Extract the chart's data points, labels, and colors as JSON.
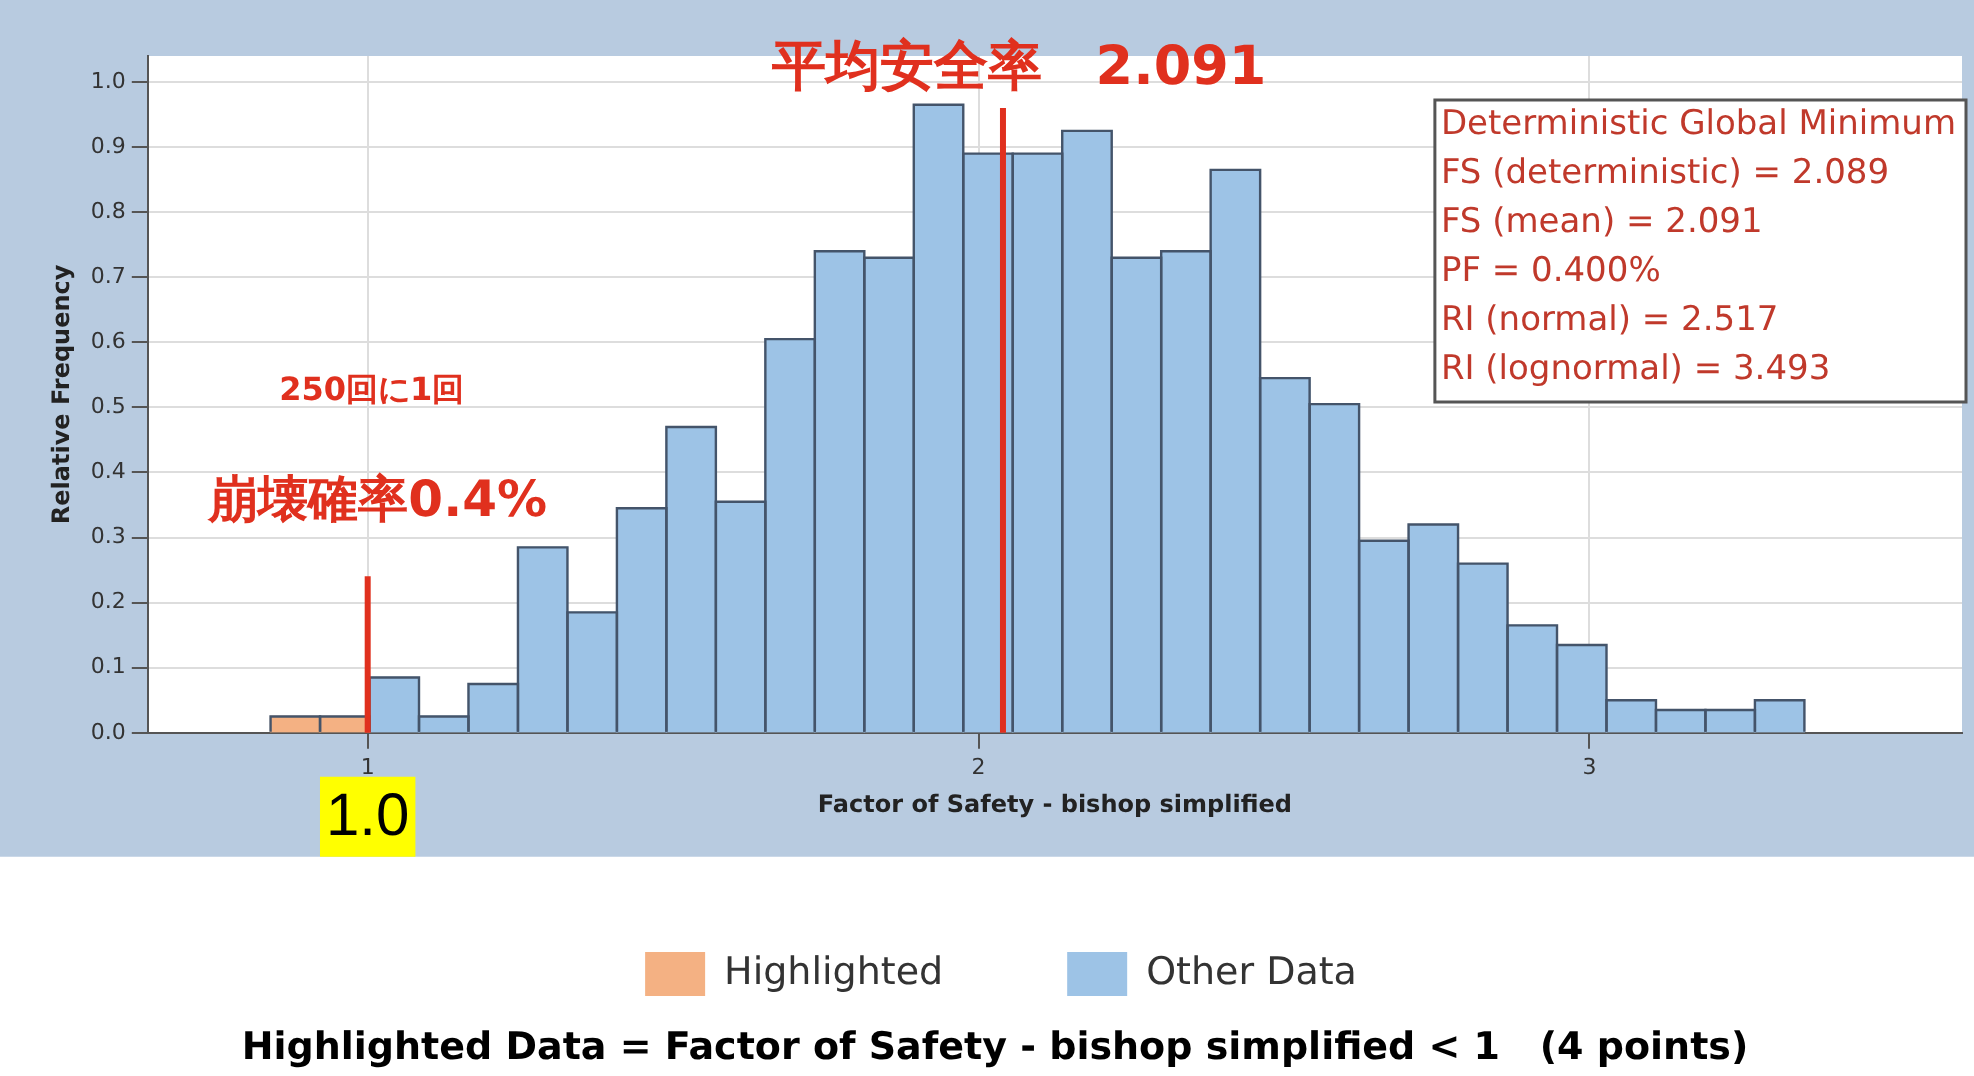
{
  "chart_data": {
    "type": "histogram",
    "xlabel": "Factor of Safety - bishop simplified",
    "ylabel": "Relative Frequency",
    "bins": [
      0.841,
      0.922,
      1.003,
      1.084,
      1.165,
      1.246,
      1.327,
      1.408,
      1.489,
      1.57,
      1.651,
      1.732,
      1.813,
      1.894,
      1.975,
      2.056,
      2.137,
      2.218,
      2.299,
      2.38,
      2.461,
      2.542,
      2.623,
      2.704,
      2.785,
      2.866,
      2.947,
      3.028,
      3.109,
      3.19,
      3.271,
      3.352
    ],
    "series": [
      {
        "name": "Highlighted",
        "color": "#f4b183",
        "values": [
          0.025,
          0.025,
          null,
          null,
          null,
          null,
          null,
          null,
          null,
          null,
          null,
          null,
          null,
          null,
          null,
          null,
          null,
          null,
          null,
          null,
          null,
          null,
          null,
          null,
          null,
          null,
          null,
          null,
          null,
          null,
          null
        ]
      },
      {
        "name": "Other Data",
        "color": "#9dc3e6",
        "values": [
          null,
          null,
          0.085,
          0.025,
          0.075,
          0.285,
          0.185,
          0.345,
          0.47,
          0.355,
          0.605,
          0.74,
          0.73,
          0.965,
          0.89,
          0.89,
          0.925,
          0.73,
          0.74,
          0.865,
          0.545,
          0.505,
          0.295,
          0.32,
          0.26,
          0.165,
          0.135,
          0.05,
          0.035,
          0.035,
          0.05
        ]
      }
    ],
    "xlim": [
      0.64,
      3.61
    ],
    "xticks": [
      1,
      2,
      3
    ],
    "ylim": [
      0,
      1.04
    ],
    "yticks": [
      {
        "value": 0,
        "label": "0.0"
      },
      {
        "value": 0.1,
        "label": "0.1"
      },
      {
        "value": 0.2,
        "label": "0.2"
      },
      {
        "value": 0.3,
        "label": "0.3"
      },
      {
        "value": 0.4,
        "label": "0.4"
      },
      {
        "value": 0.5,
        "label": "0.5"
      },
      {
        "value": 0.6,
        "label": "0.6"
      },
      {
        "value": 0.7,
        "label": "0.7"
      },
      {
        "value": 0.8,
        "label": "0.8"
      },
      {
        "value": 0.9,
        "label": "0.9"
      },
      {
        "value": 1,
        "label": "1.0"
      }
    ],
    "grid": true,
    "legend": "bottom",
    "ref_lines": [
      {
        "axis": "x",
        "value": 1,
        "label": "崩壊確率0.4%",
        "color": "#e0301e"
      },
      {
        "axis": "x",
        "value": 2.04,
        "label": "平均安全率　2.091",
        "color": "#e0301e"
      }
    ],
    "annotations": [
      "250回に1回",
      "Deterministic Global Minimum",
      "FS (deterministic) = 2.089",
      "FS (mean) = 2.091",
      "PF = 0.400%",
      "RI (normal) = 2.517",
      "RI (lognormal) = 3.493",
      "Highlighted Data = Factor of Safety - bishop simplified < 1   (4 points)",
      {
        "text": "1.0",
        "x": 1,
        "y": 0
      }
    ]
  }
}
